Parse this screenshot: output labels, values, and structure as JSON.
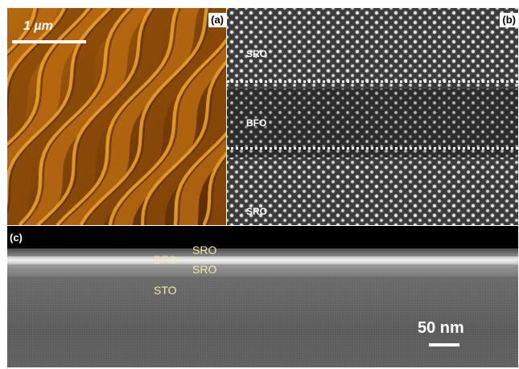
{
  "figure": {
    "panels": [
      {
        "id": "a",
        "tag": "(a)",
        "scale_label": "1 µm",
        "palette": [
          "#e8a02a",
          "#b86a10",
          "#8a4a08",
          "#5a2c04"
        ]
      },
      {
        "id": "b",
        "tag": "(b)",
        "layers": [
          "SRO",
          "BFO",
          "SRO"
        ]
      },
      {
        "id": "c",
        "tag": "(c)",
        "layers": [
          "BFO",
          "SRO",
          "SRO",
          "STO"
        ],
        "scale_label": "50 nm"
      }
    ]
  }
}
